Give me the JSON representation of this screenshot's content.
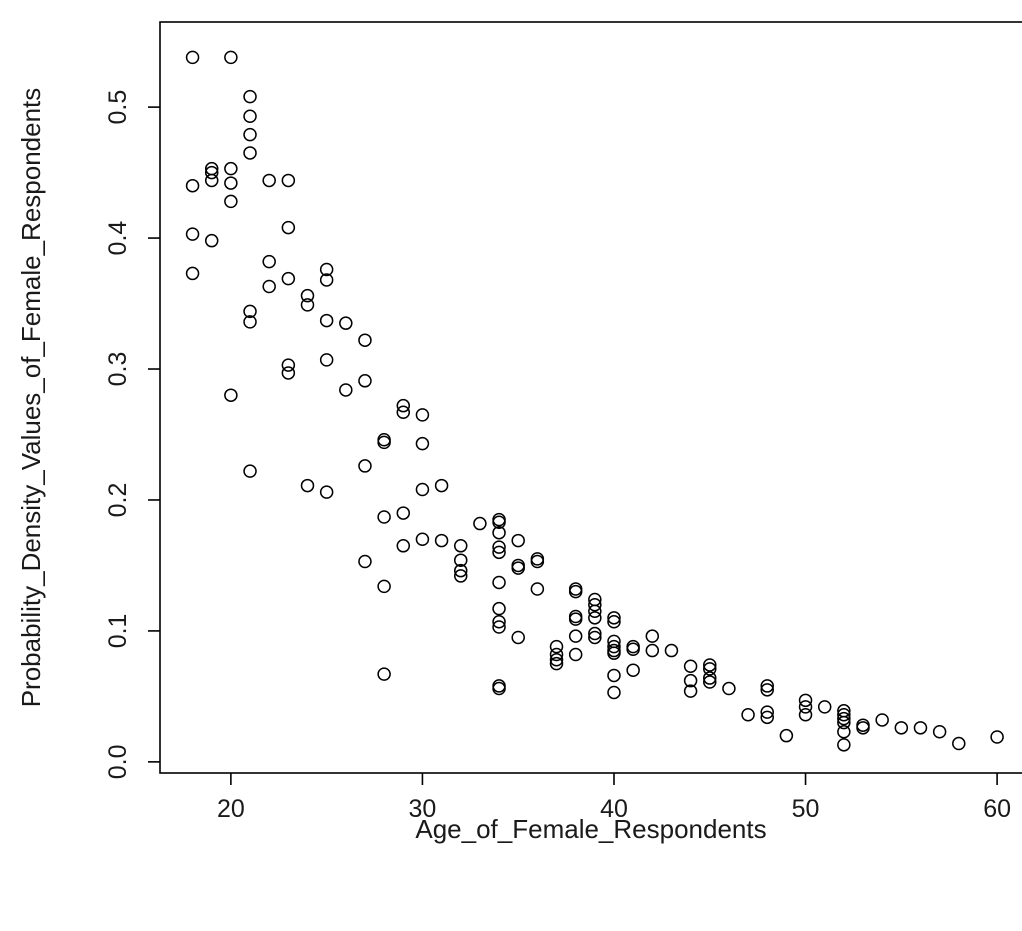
{
  "chart_data": {
    "type": "scatter",
    "xlabel": "Age_of_Female_Respondents",
    "ylabel": "Probability_Density_Values_of_Female_Respondents",
    "xlim": [
      16.3,
      61.3
    ],
    "ylim": [
      -0.0085,
      0.565
    ],
    "grid": false,
    "x_ticks": [
      20,
      30,
      40,
      50,
      60
    ],
    "x_tick_labels": [
      "20",
      "30",
      "40",
      "50",
      "60"
    ],
    "y_ticks": [
      0.0,
      0.1,
      0.2,
      0.3,
      0.4,
      0.5
    ],
    "y_tick_labels": [
      "0.0",
      "0.1",
      "0.2",
      "0.3",
      "0.4",
      "0.5"
    ],
    "points": [
      [
        18,
        0.538
      ],
      [
        18,
        0.44
      ],
      [
        18,
        0.403
      ],
      [
        18,
        0.373
      ],
      [
        19,
        0.453
      ],
      [
        19,
        0.45
      ],
      [
        19,
        0.444
      ],
      [
        19,
        0.398
      ],
      [
        20,
        0.538
      ],
      [
        20,
        0.453
      ],
      [
        20,
        0.442
      ],
      [
        20,
        0.428
      ],
      [
        20,
        0.28
      ],
      [
        21,
        0.508
      ],
      [
        21,
        0.493
      ],
      [
        21,
        0.479
      ],
      [
        21,
        0.465
      ],
      [
        21,
        0.344
      ],
      [
        21,
        0.336
      ],
      [
        21,
        0.222
      ],
      [
        22,
        0.444
      ],
      [
        22,
        0.382
      ],
      [
        22,
        0.363
      ],
      [
        23,
        0.444
      ],
      [
        23,
        0.408
      ],
      [
        23,
        0.369
      ],
      [
        23,
        0.303
      ],
      [
        23,
        0.297
      ],
      [
        24,
        0.356
      ],
      [
        24,
        0.349
      ],
      [
        24,
        0.211
      ],
      [
        25,
        0.376
      ],
      [
        25,
        0.368
      ],
      [
        25,
        0.337
      ],
      [
        25,
        0.307
      ],
      [
        25,
        0.206
      ],
      [
        26,
        0.335
      ],
      [
        26,
        0.284
      ],
      [
        27,
        0.322
      ],
      [
        27,
        0.291
      ],
      [
        27,
        0.226
      ],
      [
        27,
        0.153
      ],
      [
        28,
        0.246
      ],
      [
        28,
        0.244
      ],
      [
        28,
        0.187
      ],
      [
        28,
        0.134
      ],
      [
        28,
        0.067
      ],
      [
        29,
        0.272
      ],
      [
        29,
        0.267
      ],
      [
        29,
        0.19
      ],
      [
        29,
        0.165
      ],
      [
        30,
        0.265
      ],
      [
        30,
        0.243
      ],
      [
        30,
        0.208
      ],
      [
        30,
        0.17
      ],
      [
        31,
        0.211
      ],
      [
        31,
        0.169
      ],
      [
        32,
        0.165
      ],
      [
        32,
        0.154
      ],
      [
        32,
        0.146
      ],
      [
        32,
        0.142
      ],
      [
        33,
        0.182
      ],
      [
        34,
        0.185
      ],
      [
        34,
        0.183
      ],
      [
        34,
        0.175
      ],
      [
        34,
        0.164
      ],
      [
        34,
        0.16
      ],
      [
        34,
        0.137
      ],
      [
        34,
        0.117
      ],
      [
        34,
        0.107
      ],
      [
        34,
        0.103
      ],
      [
        34,
        0.058
      ],
      [
        34,
        0.056
      ],
      [
        35,
        0.169
      ],
      [
        35,
        0.15
      ],
      [
        35,
        0.148
      ],
      [
        35,
        0.095
      ],
      [
        36,
        0.155
      ],
      [
        36,
        0.153
      ],
      [
        36,
        0.132
      ],
      [
        37,
        0.088
      ],
      [
        37,
        0.082
      ],
      [
        37,
        0.078
      ],
      [
        37,
        0.075
      ],
      [
        38,
        0.132
      ],
      [
        38,
        0.13
      ],
      [
        38,
        0.111
      ],
      [
        38,
        0.109
      ],
      [
        38,
        0.096
      ],
      [
        38,
        0.082
      ],
      [
        39,
        0.124
      ],
      [
        39,
        0.12
      ],
      [
        39,
        0.115
      ],
      [
        39,
        0.11
      ],
      [
        39,
        0.098
      ],
      [
        39,
        0.095
      ],
      [
        40,
        0.11
      ],
      [
        40,
        0.107
      ],
      [
        40,
        0.092
      ],
      [
        40,
        0.088
      ],
      [
        40,
        0.085
      ],
      [
        40,
        0.083
      ],
      [
        40,
        0.066
      ],
      [
        40,
        0.053
      ],
      [
        41,
        0.088
      ],
      [
        41,
        0.086
      ],
      [
        41,
        0.07
      ],
      [
        42,
        0.096
      ],
      [
        42,
        0.085
      ],
      [
        43,
        0.085
      ],
      [
        44,
        0.073
      ],
      [
        44,
        0.062
      ],
      [
        44,
        0.054
      ],
      [
        45,
        0.074
      ],
      [
        45,
        0.071
      ],
      [
        45,
        0.064
      ],
      [
        45,
        0.061
      ],
      [
        46,
        0.056
      ],
      [
        47,
        0.036
      ],
      [
        48,
        0.058
      ],
      [
        48,
        0.055
      ],
      [
        48,
        0.038
      ],
      [
        48,
        0.034
      ],
      [
        49,
        0.02
      ],
      [
        50,
        0.047
      ],
      [
        50,
        0.042
      ],
      [
        50,
        0.036
      ],
      [
        51,
        0.042
      ],
      [
        52,
        0.039
      ],
      [
        52,
        0.036
      ],
      [
        52,
        0.033
      ],
      [
        52,
        0.03
      ],
      [
        52,
        0.023
      ],
      [
        52,
        0.013
      ],
      [
        53,
        0.028
      ],
      [
        53,
        0.026
      ],
      [
        54,
        0.032
      ],
      [
        55,
        0.026
      ],
      [
        56,
        0.026
      ],
      [
        57,
        0.023
      ],
      [
        58,
        0.014
      ],
      [
        60,
        0.019
      ]
    ]
  }
}
